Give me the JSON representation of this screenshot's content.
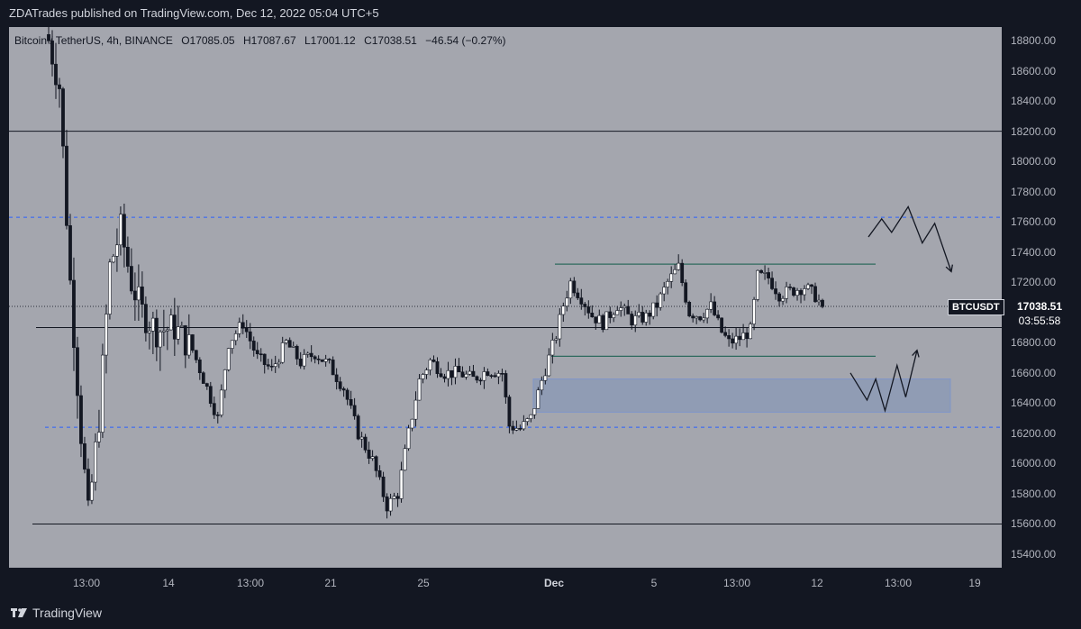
{
  "header": {
    "published_text": "ZDATrades published on TradingView.com, Dec 12, 2022 05:04 UTC+5"
  },
  "legend": {
    "symbol": "Bitcoin / TetherUS, 4h, BINANCE",
    "open": "O17085.05",
    "high": "H17087.67",
    "low": "L17001.12",
    "close": "C17038.51",
    "change": "−46.54 (−0.27%)"
  },
  "price_label": {
    "symbol": "BTCUSDT",
    "price": "17038.51",
    "timer": "03:55:58"
  },
  "footer": {
    "brand": "TradingView"
  },
  "colors": {
    "background": "#a4a6ae",
    "frame": "#131722",
    "up_candle": "#ffffff",
    "down_candle": "#131722",
    "zone": "#7f93b9",
    "channel": "#2e6b5e",
    "dashed": "#2962ff"
  },
  "chart_data": {
    "type": "candlestick",
    "title": "",
    "ylim": [
      15400,
      18900
    ],
    "y_ticks": [
      "18800.00",
      "18600.00",
      "18400.00",
      "18200.00",
      "18000.00",
      "17800.00",
      "17600.00",
      "17400.00",
      "17200.00",
      "17000.00",
      "16800.00",
      "16600.00",
      "16400.00",
      "16200.00",
      "16000.00",
      "15800.00",
      "15600.00",
      "15400.00"
    ],
    "x_ticks": [
      {
        "label": "13:00",
        "bold": false
      },
      {
        "label": "14",
        "bold": false
      },
      {
        "label": "13:00",
        "bold": false
      },
      {
        "label": "21",
        "bold": false
      },
      {
        "label": "25",
        "bold": false
      },
      {
        "label": "Dec",
        "bold": true
      },
      {
        "label": "5",
        "bold": false
      },
      {
        "label": "13:00",
        "bold": false
      },
      {
        "label": "12",
        "bold": false
      },
      {
        "label": "13:00",
        "bold": false
      },
      {
        "label": "19",
        "bold": false
      }
    ],
    "horizontal_levels": [
      {
        "price": 18200,
        "style": "solid"
      },
      {
        "price": 16900,
        "style": "solid"
      },
      {
        "price": 15600,
        "style": "solid"
      },
      {
        "price": 17630,
        "style": "dashed"
      },
      {
        "price": 16240,
        "style": "dashed"
      },
      {
        "price": 17040,
        "style": "dotted"
      }
    ],
    "channel_lines": [
      17320,
      16710
    ],
    "demand_zone": [
      16340,
      16560
    ],
    "current_price": 17038.51,
    "anchors": [
      [
        0,
        18800
      ],
      [
        3,
        18500
      ],
      [
        6,
        17200
      ],
      [
        9,
        16200
      ],
      [
        11,
        15650
      ],
      [
        14,
        16300
      ],
      [
        17,
        17300
      ],
      [
        20,
        17550
      ],
      [
        23,
        17200
      ],
      [
        26,
        17000
      ],
      [
        30,
        16880
      ],
      [
        35,
        16900
      ],
      [
        40,
        16750
      ],
      [
        44,
        16500
      ],
      [
        47,
        16300
      ],
      [
        50,
        16800
      ],
      [
        54,
        16930
      ],
      [
        58,
        16700
      ],
      [
        62,
        16620
      ],
      [
        66,
        16800
      ],
      [
        70,
        16670
      ],
      [
        74,
        16730
      ],
      [
        78,
        16650
      ],
      [
        82,
        16500
      ],
      [
        86,
        16200
      ],
      [
        90,
        16020
      ],
      [
        94,
        15720
      ],
      [
        97,
        15800
      ],
      [
        100,
        16200
      ],
      [
        103,
        16550
      ],
      [
        106,
        16680
      ],
      [
        110,
        16600
      ],
      [
        114,
        16600
      ],
      [
        118,
        16560
      ],
      [
        122,
        16620
      ],
      [
        126,
        16600
      ],
      [
        128,
        16250
      ],
      [
        131,
        16230
      ],
      [
        134,
        16300
      ],
      [
        137,
        16550
      ],
      [
        141,
        16850
      ],
      [
        143,
        17050
      ],
      [
        145,
        17200
      ],
      [
        148,
        17100
      ],
      [
        151,
        16980
      ],
      [
        154,
        16930
      ],
      [
        158,
        17050
      ],
      [
        162,
        16950
      ],
      [
        166,
        16970
      ],
      [
        169,
        17050
      ],
      [
        172,
        17200
      ],
      [
        175,
        17300
      ],
      [
        178,
        17000
      ],
      [
        181,
        16980
      ],
      [
        184,
        17040
      ],
      [
        187,
        16870
      ],
      [
        189,
        16800
      ],
      [
        192,
        16830
      ],
      [
        195,
        16880
      ],
      [
        197,
        17240
      ],
      [
        200,
        17230
      ],
      [
        203,
        17120
      ],
      [
        206,
        17140
      ],
      [
        210,
        17170
      ],
      [
        213,
        17110
      ],
      [
        215,
        17038
      ]
    ],
    "projection_up_left": [
      [
        0,
        17500
      ],
      [
        0.16,
        17620
      ],
      [
        0.28,
        17530
      ],
      [
        0.48,
        17700
      ],
      [
        0.65,
        17460
      ],
      [
        0.8,
        17590
      ],
      [
        1,
        17270
      ]
    ],
    "projection_bottom": [
      [
        0,
        16600
      ],
      [
        0.25,
        16420
      ],
      [
        0.38,
        16560
      ],
      [
        0.52,
        16350
      ],
      [
        0.7,
        16650
      ],
      [
        0.83,
        16440
      ],
      [
        1,
        16750
      ]
    ]
  }
}
